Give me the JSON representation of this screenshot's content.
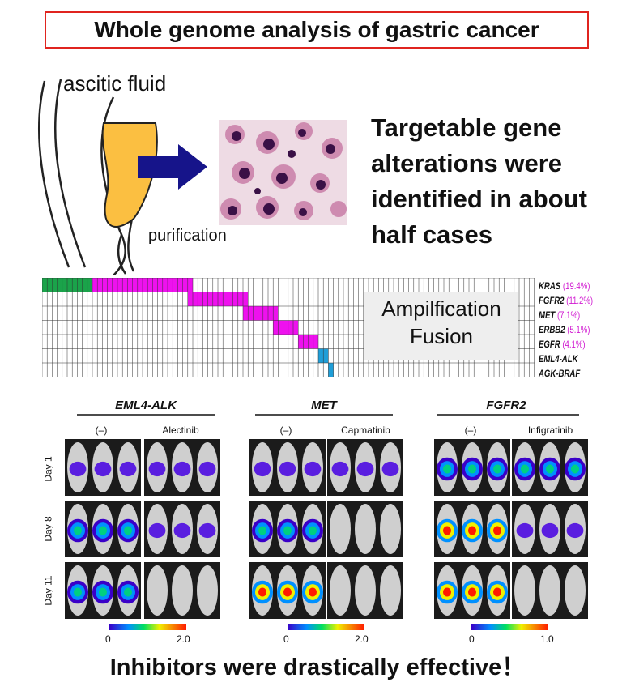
{
  "title": "Whole genome analysis of gastric cancer",
  "schematic": {
    "ascitic_label": "ascitic fluid",
    "purification_label": "purification"
  },
  "headline": "Targetable gene alterations were identified in about half cases",
  "matrix": {
    "legend_line1": "Ampilfication",
    "legend_line2": "Fusion",
    "genes": [
      {
        "name": "KRAS",
        "pct": "(19.4%)"
      },
      {
        "name": "FGFR2",
        "pct": "(11.2%)"
      },
      {
        "name": "MET",
        "pct": "(7.1%)"
      },
      {
        "name": "ERBB2",
        "pct": "(5.1%)"
      },
      {
        "name": "EGFR",
        "pct": "(4.1%)"
      },
      {
        "name": "EML4-ALK",
        "pct": ""
      },
      {
        "name": "AGK-BRAF",
        "pct": ""
      }
    ],
    "colors": {
      "green": "#1aa34a",
      "magenta": "#ee11ee",
      "blue": "#1f9ed8"
    }
  },
  "panels": [
    {
      "gene": "EML4-ALK",
      "control": "(–)",
      "drug": "Alectinib",
      "scale_min": "0",
      "scale_max": "2.0"
    },
    {
      "gene": "MET",
      "control": "(–)",
      "drug": "Capmatinib",
      "scale_min": "0",
      "scale_max": "2.0"
    },
    {
      "gene": "FGFR2",
      "control": "(–)",
      "drug": "Infigratinib",
      "scale_min": "0",
      "scale_max": "1.0"
    }
  ],
  "days": [
    "Day 1",
    "Day 8",
    "Day 11"
  ],
  "footer": "Inhibitors were drastically effective！"
}
